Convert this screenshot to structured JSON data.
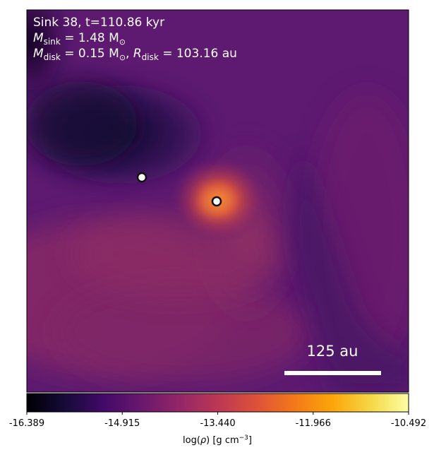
{
  "panel": {
    "title_line": "Sink 38, t=110.86 kyr",
    "mass_sink": {
      "symbol": "M",
      "sub": "sink",
      "rest": " = 1.48 M",
      "sun": "⊙"
    },
    "disk_line": {
      "symbol": "M",
      "sub": "disk",
      "mid": " = 0.15 M",
      "sun": "⊙",
      "sep": ", ",
      "r_symbol": "R",
      "r_sub": "disk",
      "r_rest": " = 103.16 au"
    }
  },
  "scale_bar": {
    "label": "125 au",
    "length_au": 125
  },
  "sinks": [
    {
      "name": "sink-secondary"
    },
    {
      "name": "sink-primary"
    }
  ],
  "colorbar": {
    "colormap": "inferno",
    "min": -16.389,
    "max": -10.492,
    "ticks": [
      "-16.389",
      "-14.915",
      "-13.440",
      "-11.966",
      "-10.492"
    ],
    "label_prefix": "log(",
    "label_rho": "ρ",
    "label_suffix": ") [g cm",
    "label_exp": "−3",
    "label_close": "]"
  },
  "colors": {
    "background_purple": "#5e1a70",
    "dense_core": "#f3742a",
    "low_density": "#0b0720"
  }
}
